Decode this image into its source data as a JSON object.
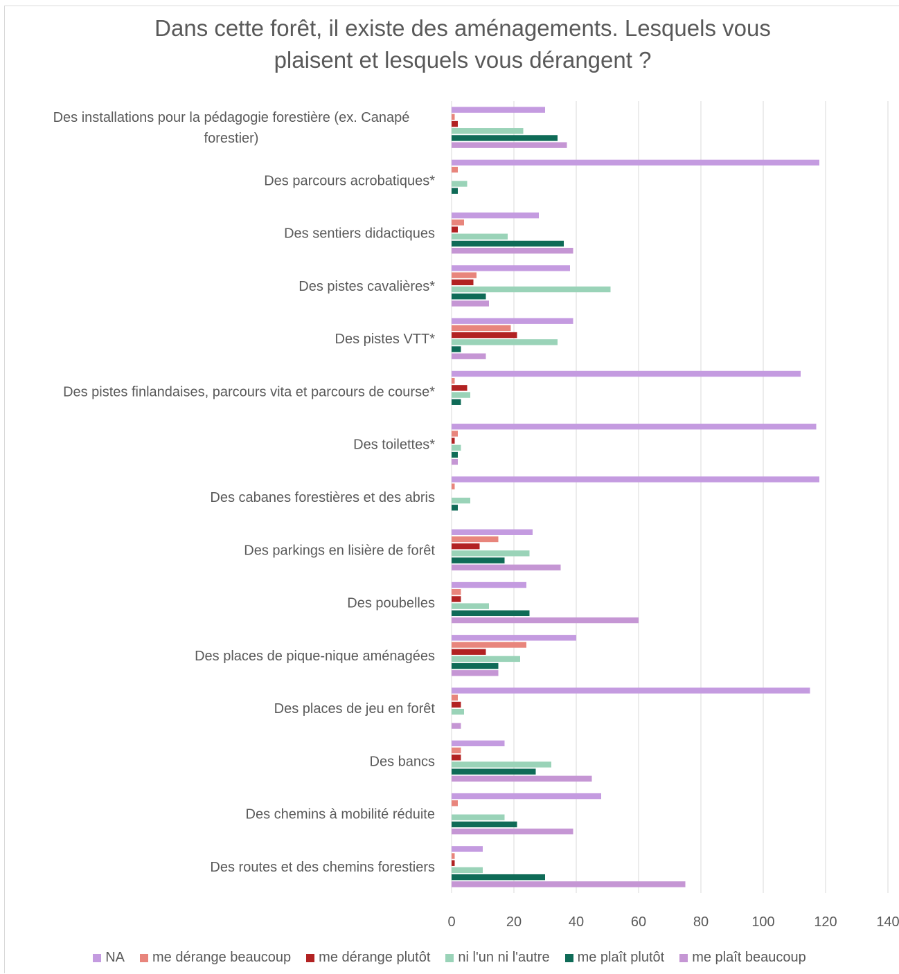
{
  "chart_data": {
    "type": "bar",
    "orientation": "horizontal",
    "title": "Dans cette forêt, il existe des aménagements. Lesquels vous plaisent et lesquels vous dérangent ?",
    "title_lines": [
      "Dans cette forêt, il existe des aménagements. Lesquels vous",
      "plaisent et lesquels vous dérangent ?"
    ],
    "categories": [
      "Des installations pour la pédagogie forestière (ex. Canapé forestier)",
      "Des parcours acrobatiques*",
      "Des sentiers didactiques",
      "Des pistes cavalières*",
      "Des pistes VTT*",
      "Des pistes finlandaises, parcours vita et parcours de course*",
      "Des toilettes*",
      "Des cabanes forestières et des abris",
      "Des parkings en lisière de forêt",
      "Des poubelles",
      "Des places de pique-nique aménagées",
      "Des places de jeu en forêt",
      "Des bancs",
      "Des chemins à mobilité réduite",
      "Des routes et des chemins forestiers"
    ],
    "category_lines": [
      [
        "Des installations pour la pédagogie forestière (ex. Canapé",
        "forestier)"
      ],
      [
        "Des parcours acrobatiques*"
      ],
      [
        "Des sentiers didactiques"
      ],
      [
        "Des pistes cavalières*"
      ],
      [
        "Des pistes VTT*"
      ],
      [
        "Des pistes finlandaises, parcours vita et parcours de course*"
      ],
      [
        "Des toilettes*"
      ],
      [
        "Des cabanes forestières et des abris"
      ],
      [
        "Des parkings en lisière de forêt"
      ],
      [
        "Des poubelles"
      ],
      [
        "Des places de pique-nique aménagées"
      ],
      [
        "Des places de jeu en forêt"
      ],
      [
        "Des bancs"
      ],
      [
        "Des chemins à mobilité réduite"
      ],
      [
        "Des routes et des chemins forestiers"
      ]
    ],
    "series": [
      {
        "name": "NA",
        "color": "#c49be0",
        "values": [
          30,
          118,
          28,
          38,
          39,
          112,
          117,
          118,
          26,
          24,
          40,
          115,
          17,
          48,
          10
        ]
      },
      {
        "name": "me dérange beaucoup",
        "color": "#e8857c",
        "values": [
          1,
          2,
          4,
          8,
          19,
          1,
          2,
          1,
          15,
          3,
          24,
          2,
          3,
          2,
          1
        ]
      },
      {
        "name": "me dérange plutôt",
        "color": "#b22222",
        "values": [
          2,
          0,
          2,
          7,
          21,
          5,
          1,
          0,
          9,
          3,
          11,
          3,
          3,
          0,
          1
        ]
      },
      {
        "name": "ni l'un ni l'autre",
        "color": "#9ad3b8",
        "values": [
          23,
          5,
          18,
          51,
          34,
          6,
          3,
          6,
          25,
          12,
          22,
          4,
          32,
          17,
          10
        ]
      },
      {
        "name": "me plaît plutôt",
        "color": "#0f6b57",
        "values": [
          34,
          2,
          36,
          11,
          3,
          3,
          2,
          2,
          17,
          25,
          15,
          0,
          27,
          21,
          30
        ]
      },
      {
        "name": "me plaît beaucoup",
        "color": "#c596d4",
        "values": [
          37,
          0,
          39,
          12,
          11,
          0,
          2,
          0,
          35,
          60,
          15,
          3,
          45,
          39,
          75
        ]
      }
    ],
    "xlim": [
      0,
      140
    ],
    "xticks": [
      0,
      20,
      40,
      60,
      80,
      100,
      120,
      140
    ],
    "grid": true,
    "legend_position": "bottom"
  }
}
